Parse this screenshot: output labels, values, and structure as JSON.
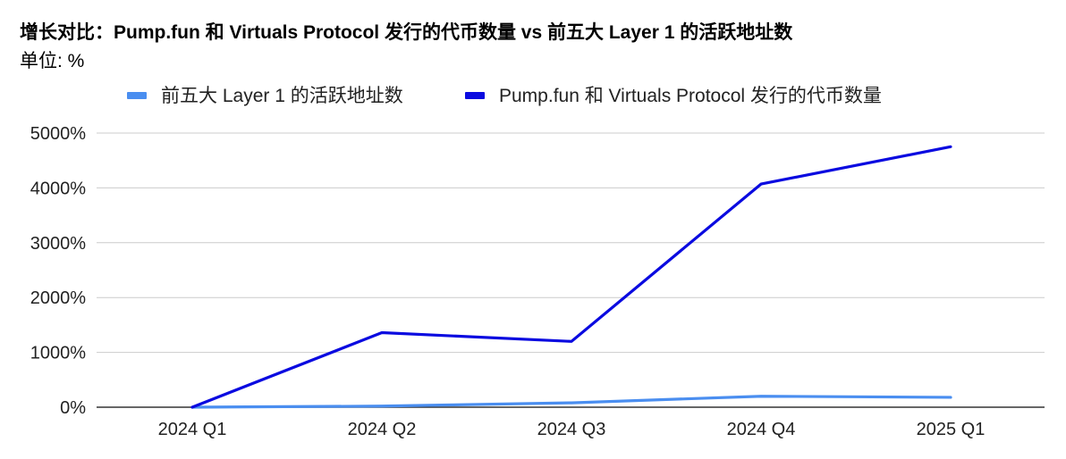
{
  "chart_data": {
    "type": "line",
    "title": "增长对比：Pump.fun 和 Virtuals Protocol 发行的代币数量 vs 前五大 Layer 1 的活跃地址数",
    "subtitle": "单位: %",
    "categories": [
      "2024 Q1",
      "2024 Q2",
      "2024 Q3",
      "2024 Q4",
      "2025 Q1"
    ],
    "ylim": [
      0,
      5000
    ],
    "yticks": [
      0,
      1000,
      2000,
      3000,
      4000,
      5000
    ],
    "ytick_labels": [
      "0%",
      "1000%",
      "2000%",
      "3000%",
      "4000%",
      "5000%"
    ],
    "grid": true,
    "legend_position": "top",
    "series": [
      {
        "name": "前五大 Layer 1 的活跃地址数",
        "color": "#4a8ef0",
        "values": [
          0,
          20,
          80,
          200,
          180
        ]
      },
      {
        "name": "Pump.fun 和 Virtuals Protocol 发行的代币数量",
        "color": "#0a0ae0",
        "values": [
          0,
          1360,
          1200,
          4070,
          4750
        ]
      }
    ]
  }
}
